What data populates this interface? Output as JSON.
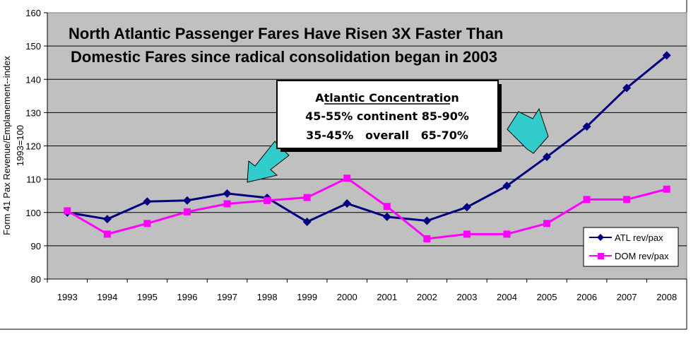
{
  "chart_data": {
    "type": "line",
    "title_lines": [
      "North Atlantic Passenger Fares Have Risen 3X Faster Than",
      "Domestic Fares since radical consolidation began in 2003"
    ],
    "xlabel": "",
    "ylabel_lines": [
      "Form 41 Pax Revenue/Emplanement--index",
      "1993=100"
    ],
    "x": [
      "1993",
      "1994",
      "1995",
      "1996",
      "1997",
      "1998",
      "1999",
      "2000",
      "2001",
      "2002",
      "2003",
      "2004",
      "2005",
      "2006",
      "2007",
      "2008"
    ],
    "y_ticks": [
      80,
      90,
      100,
      110,
      120,
      130,
      140,
      150,
      160
    ],
    "ylim": [
      80,
      160
    ],
    "grid": true,
    "background": "#c0c0c0",
    "series": [
      {
        "name": "ATL rev/pax",
        "color": "#000080",
        "marker": "diamond",
        "values": [
          100,
          98,
          103.3,
          103.6,
          105.7,
          104.4,
          97.2,
          102.7,
          98.7,
          97.5,
          101.6,
          108,
          116.7,
          125.8,
          137.4,
          147.2
        ]
      },
      {
        "name": "DOM rev/pax",
        "color": "#ff00ff",
        "marker": "square",
        "values": [
          100.5,
          93.5,
          96.7,
          100.2,
          102.6,
          103.6,
          104.5,
          110.3,
          101.8,
          92.1,
          93.5,
          93.5,
          96.7,
          103.9,
          103.9,
          107
        ]
      }
    ],
    "legend_position": "bottom-right",
    "annotation": {
      "heading": "Atlantic Concentration",
      "line1": "45-55% continent 85-90%",
      "line2": "35-45%   overall   65-70%"
    },
    "arrow_color": "#33cccc"
  }
}
